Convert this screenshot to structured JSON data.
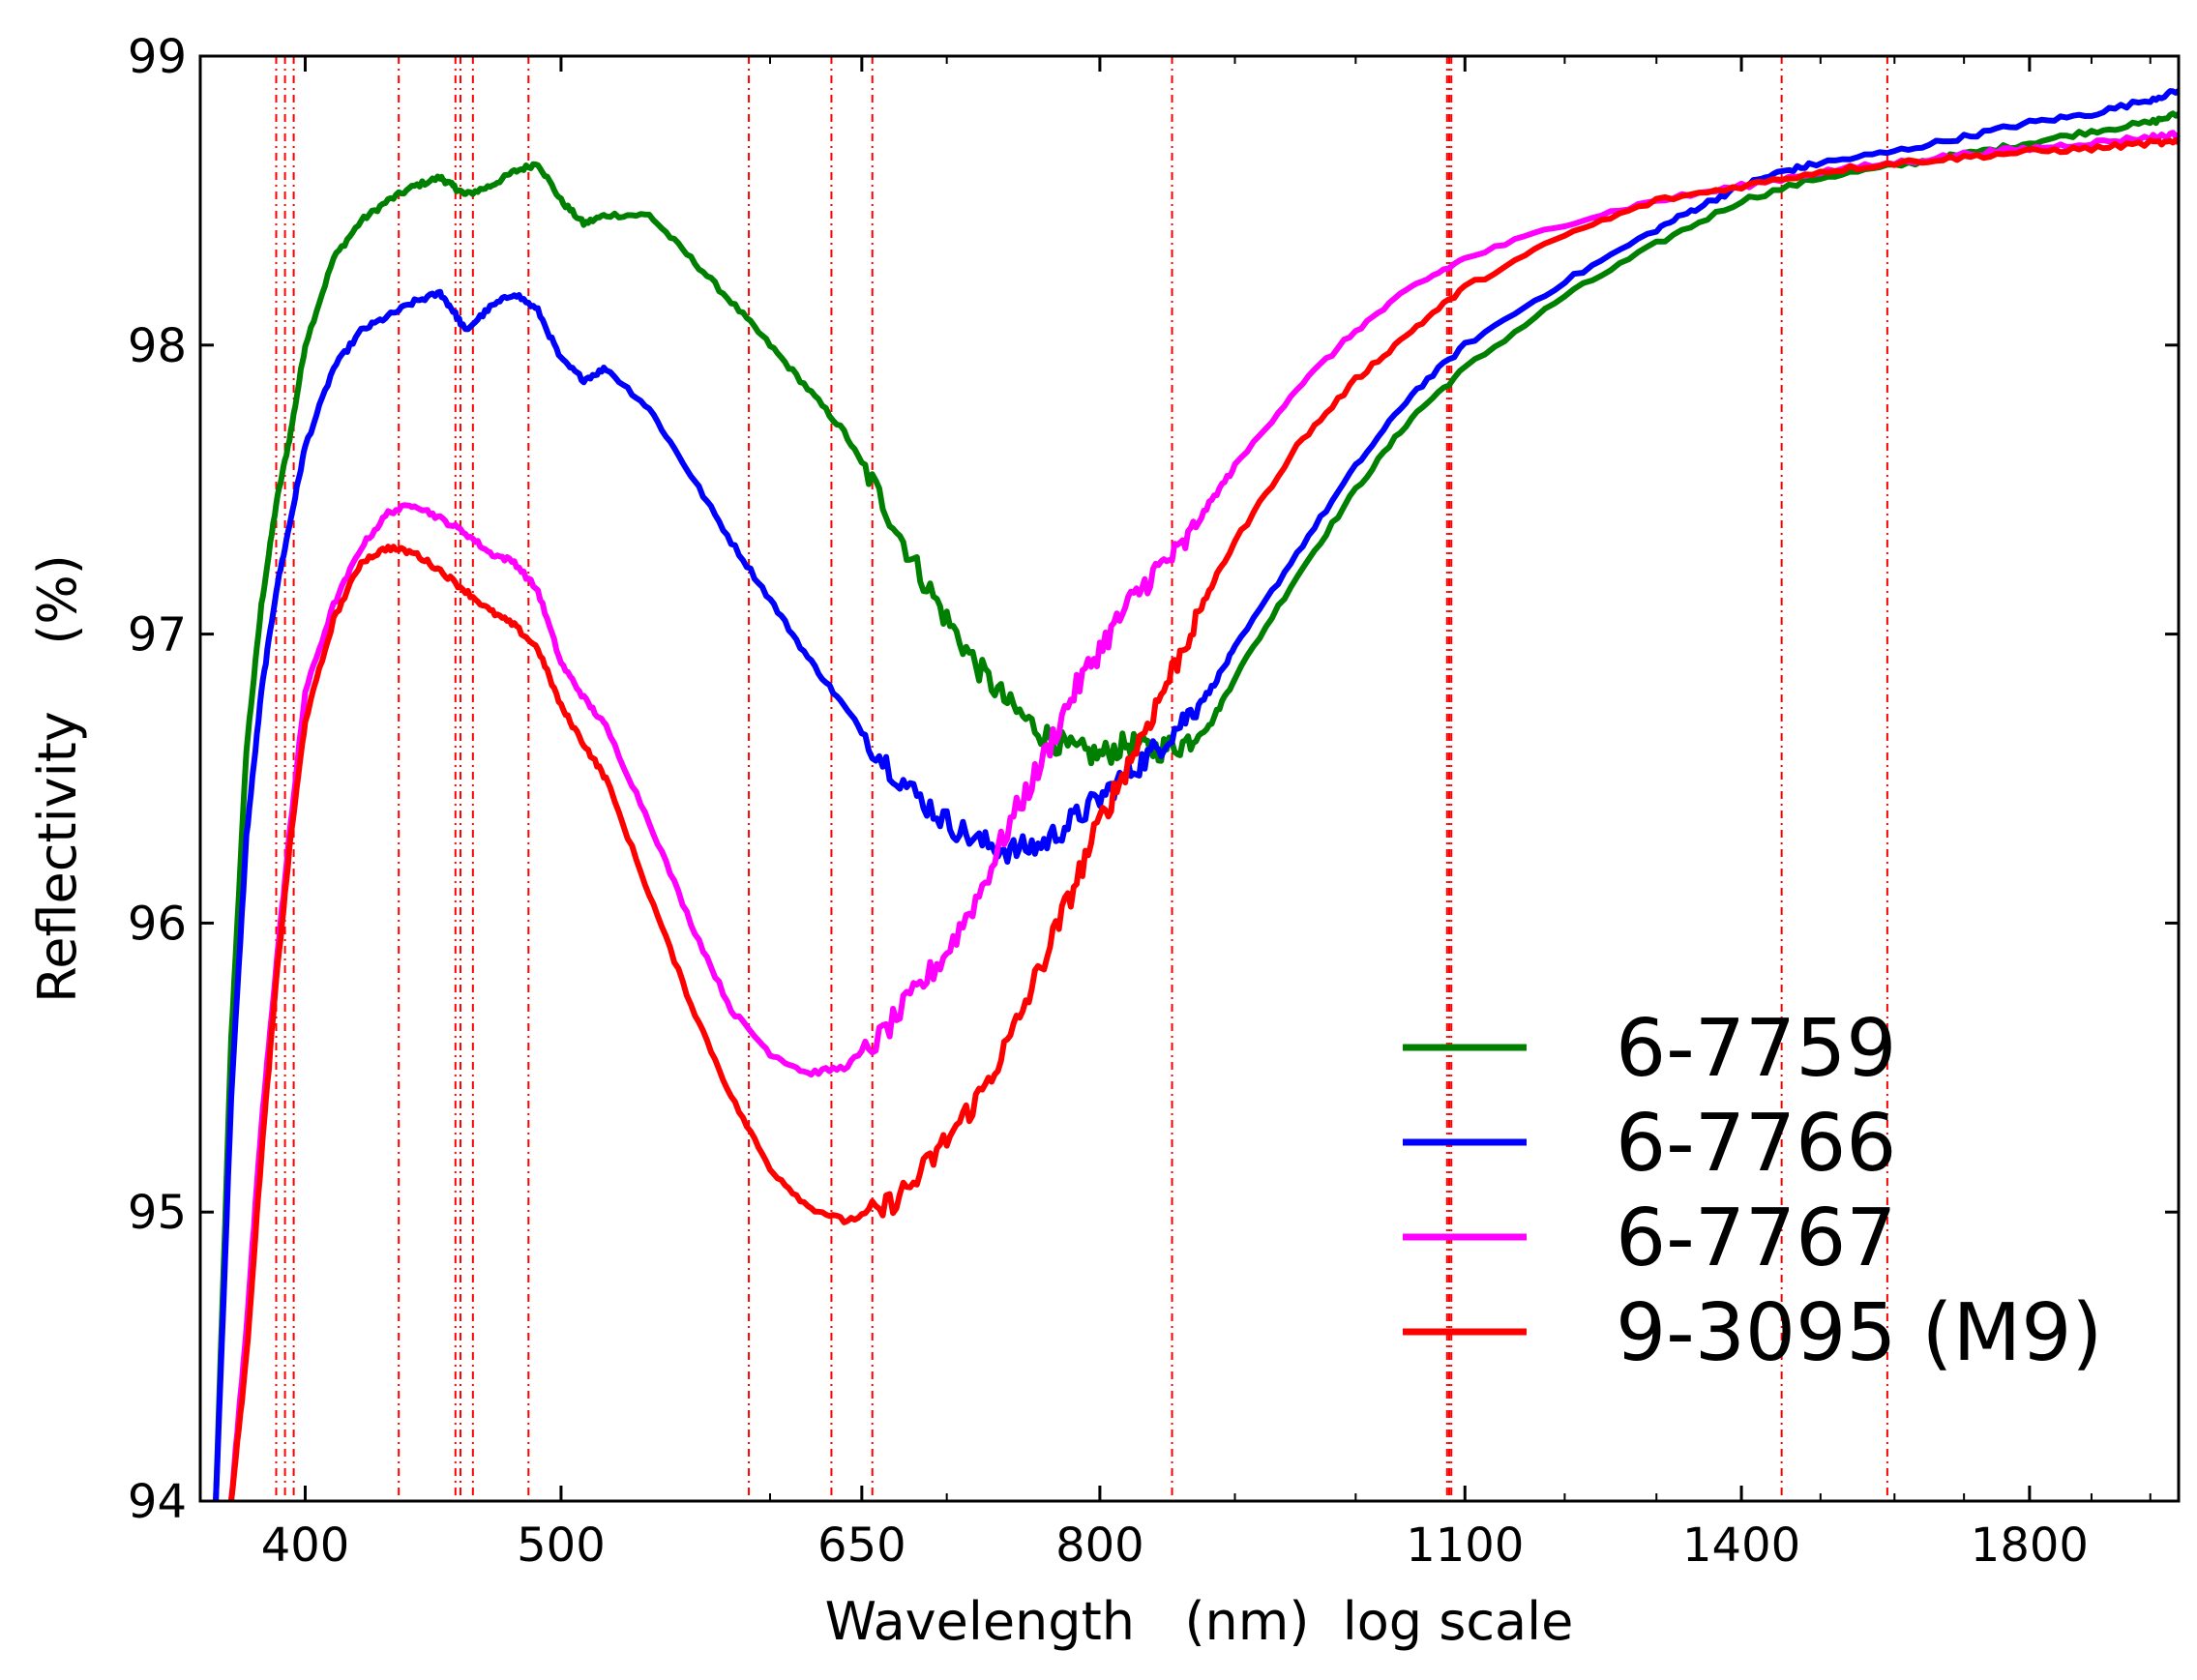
{
  "chart_data": {
    "type": "line",
    "title": "",
    "xlabel": "Wavelength   (nm)  log scale",
    "ylabel": "Reflectivity    (%)",
    "xscale": "log",
    "xlim": [
      365,
      2050
    ],
    "ylim": [
      94,
      99
    ],
    "xticks": [
      400,
      500,
      650,
      800,
      1100,
      1400,
      1800
    ],
    "xtick_labels": [
      "400",
      "500",
      "650",
      "800",
      "1100",
      "1400",
      "1800"
    ],
    "yticks": [
      94,
      95,
      96,
      97,
      98,
      99
    ],
    "ytick_labels": [
      "94",
      "95",
      "96",
      "97",
      "98",
      "99"
    ],
    "grid": false,
    "legend_position": "bottom-right",
    "reference_lines": {
      "style": "dash-dot",
      "color": "#ff0000",
      "x": [
        390,
        393,
        396,
        434,
        456,
        458,
        463,
        486,
        589,
        633,
        656,
        852,
        1083,
        1085,
        1087,
        1450,
        1590
      ]
    },
    "series": [
      {
        "name": "6-7759",
        "color": "#008000",
        "x": [
          370,
          375,
          380,
          385,
          390,
          395,
          400,
          410,
          420,
          430,
          440,
          450,
          455,
          460,
          470,
          480,
          490,
          500,
          510,
          520,
          540,
          560,
          580,
          600,
          620,
          640,
          660,
          680,
          700,
          720,
          740,
          760,
          780,
          800,
          820,
          840,
          860,
          880,
          900,
          950,
          1000,
          1050,
          1100,
          1200,
          1300,
          1400,
          1500,
          1600,
          1700,
          1800,
          1900,
          2000,
          2050
        ],
        "y": [
          94.0,
          95.6,
          96.6,
          97.1,
          97.45,
          97.7,
          98.0,
          98.3,
          98.43,
          98.5,
          98.55,
          98.58,
          98.55,
          98.52,
          98.55,
          98.6,
          98.63,
          98.5,
          98.42,
          98.45,
          98.45,
          98.3,
          98.15,
          98.0,
          97.85,
          97.7,
          97.48,
          97.25,
          97.05,
          96.88,
          96.75,
          96.66,
          96.6,
          96.58,
          96.62,
          96.6,
          96.62,
          96.68,
          96.85,
          97.2,
          97.5,
          97.75,
          97.92,
          98.17,
          98.35,
          98.5,
          98.58,
          98.62,
          98.66,
          98.7,
          98.74,
          98.77,
          98.8
        ]
      },
      {
        "name": "6-7766",
        "color": "#0000ff",
        "x": [
          370,
          375,
          380,
          385,
          390,
          395,
          400,
          410,
          420,
          430,
          440,
          450,
          455,
          460,
          470,
          480,
          490,
          500,
          510,
          520,
          540,
          560,
          580,
          600,
          620,
          640,
          660,
          680,
          700,
          720,
          740,
          760,
          780,
          800,
          820,
          840,
          860,
          880,
          900,
          950,
          1000,
          1050,
          1100,
          1200,
          1300,
          1350,
          1400,
          1450,
          1500,
          1600,
          1700,
          1800,
          1900,
          2000,
          2050
        ],
        "y": [
          94.0,
          95.4,
          96.3,
          96.8,
          97.15,
          97.4,
          97.65,
          97.92,
          98.05,
          98.1,
          98.15,
          98.18,
          98.12,
          98.05,
          98.13,
          98.18,
          98.12,
          97.95,
          97.88,
          97.92,
          97.78,
          97.55,
          97.32,
          97.12,
          96.92,
          96.75,
          96.58,
          96.45,
          96.35,
          96.28,
          96.25,
          96.27,
          96.35,
          96.43,
          96.52,
          96.6,
          96.7,
          96.8,
          96.95,
          97.28,
          97.58,
          97.83,
          98.0,
          98.22,
          98.4,
          98.48,
          98.55,
          98.6,
          98.63,
          98.67,
          98.72,
          98.77,
          98.8,
          98.85,
          98.88
        ]
      },
      {
        "name": "6-7767",
        "color": "#ff00ff",
        "x": [
          375,
          380,
          385,
          390,
          395,
          400,
          410,
          420,
          430,
          440,
          450,
          460,
          470,
          480,
          490,
          500,
          510,
          520,
          540,
          560,
          580,
          600,
          620,
          640,
          660,
          680,
          700,
          720,
          740,
          760,
          780,
          800,
          820,
          840,
          860,
          880,
          900,
          950,
          1000,
          1050,
          1100,
          1200,
          1300,
          1400,
          1500,
          1600,
          1700,
          1800,
          1900,
          2000,
          2050
        ],
        "y": [
          94.0,
          94.6,
          95.3,
          95.85,
          96.35,
          96.8,
          97.1,
          97.3,
          97.42,
          97.45,
          97.4,
          97.35,
          97.28,
          97.25,
          97.15,
          96.9,
          96.78,
          96.68,
          96.35,
          96.0,
          95.7,
          95.55,
          95.48,
          95.5,
          95.6,
          95.75,
          95.9,
          96.1,
          96.35,
          96.55,
          96.78,
          96.95,
          97.1,
          97.22,
          97.3,
          97.45,
          97.58,
          97.85,
          98.05,
          98.2,
          98.3,
          98.42,
          98.5,
          98.55,
          98.6,
          98.63,
          98.66,
          98.68,
          98.7,
          98.72,
          98.73
        ]
      },
      {
        "name": "9-3095 (M9)",
        "color": "#ff0000",
        "x": [
          375,
          380,
          385,
          390,
          395,
          400,
          410,
          420,
          430,
          440,
          450,
          460,
          470,
          480,
          490,
          500,
          510,
          520,
          540,
          560,
          580,
          600,
          620,
          640,
          660,
          680,
          700,
          720,
          740,
          760,
          780,
          800,
          820,
          840,
          860,
          880,
          900,
          950,
          1000,
          1050,
          1100,
          1200,
          1300,
          1400,
          1500,
          1600,
          1700,
          1800,
          1900,
          2000,
          2050
        ],
        "y": [
          94.0,
          94.5,
          95.2,
          95.8,
          96.3,
          96.7,
          97.05,
          97.25,
          97.3,
          97.28,
          97.22,
          97.15,
          97.08,
          97.03,
          96.95,
          96.75,
          96.62,
          96.5,
          96.1,
          95.72,
          95.4,
          95.15,
          95.02,
          94.97,
          95.0,
          95.1,
          95.25,
          95.4,
          95.6,
          95.85,
          96.1,
          96.35,
          96.55,
          96.75,
          96.95,
          97.15,
          97.32,
          97.65,
          97.88,
          98.05,
          98.2,
          98.38,
          98.5,
          98.55,
          98.6,
          98.63,
          98.65,
          98.67,
          98.68,
          98.7,
          98.7
        ]
      }
    ]
  }
}
